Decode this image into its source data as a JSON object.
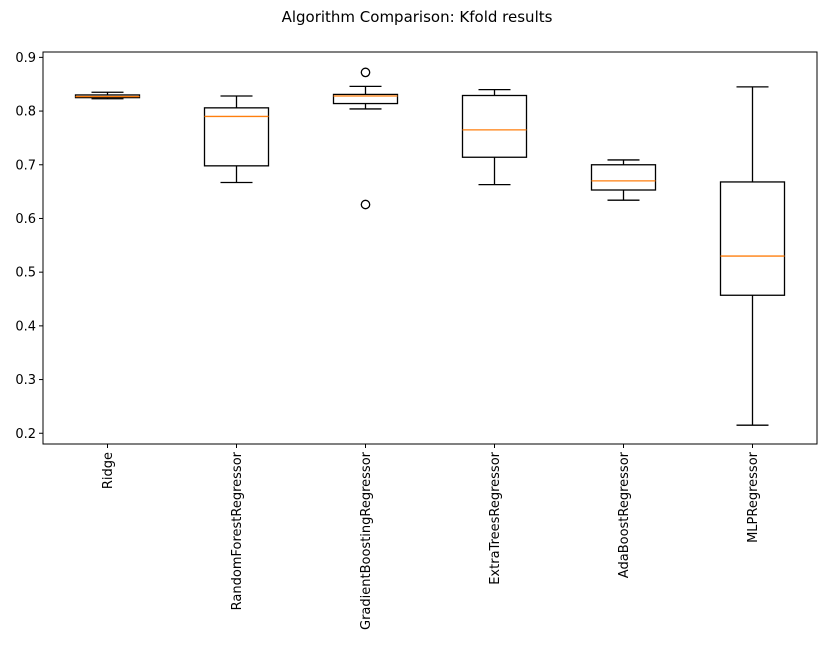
{
  "chart_data": {
    "type": "boxplot",
    "title": "Algorithm Comparison: Kfold results",
    "xlabel": "",
    "ylabel": "",
    "ylim": [
      0.18,
      0.91
    ],
    "yticks": [
      0.2,
      0.3,
      0.4,
      0.5,
      0.6,
      0.7,
      0.8,
      0.9
    ],
    "ytick_labels": [
      "0.2",
      "0.3",
      "0.4",
      "0.5",
      "0.6",
      "0.7",
      "0.8",
      "0.9"
    ],
    "grid": false,
    "median_color": "#ff7f0e",
    "box_color": "#000000",
    "categories": [
      "Ridge",
      "RandomForestRegressor",
      "GradientBoostingRegressor",
      "ExtraTreesRegressor",
      "AdaBoostRegressor",
      "MLPRegressor"
    ],
    "boxes": [
      {
        "name": "Ridge",
        "whisker_low": 0.823,
        "q1": 0.825,
        "median": 0.827,
        "q3": 0.83,
        "whisker_high": 0.835,
        "outliers": []
      },
      {
        "name": "RandomForestRegressor",
        "whisker_low": 0.667,
        "q1": 0.698,
        "median": 0.79,
        "q3": 0.806,
        "whisker_high": 0.828,
        "outliers": []
      },
      {
        "name": "GradientBoostingRegressor",
        "whisker_low": 0.804,
        "q1": 0.814,
        "median": 0.828,
        "q3": 0.831,
        "whisker_high": 0.846,
        "outliers": [
          0.872,
          0.626
        ]
      },
      {
        "name": "ExtraTreesRegressor",
        "whisker_low": 0.663,
        "q1": 0.714,
        "median": 0.765,
        "q3": 0.829,
        "whisker_high": 0.84,
        "outliers": []
      },
      {
        "name": "AdaBoostRegressor",
        "whisker_low": 0.634,
        "q1": 0.653,
        "median": 0.67,
        "q3": 0.7,
        "whisker_high": 0.709,
        "outliers": []
      },
      {
        "name": "MLPRegressor",
        "whisker_low": 0.215,
        "q1": 0.457,
        "median": 0.53,
        "q3": 0.668,
        "whisker_high": 0.845,
        "outliers": []
      }
    ]
  }
}
